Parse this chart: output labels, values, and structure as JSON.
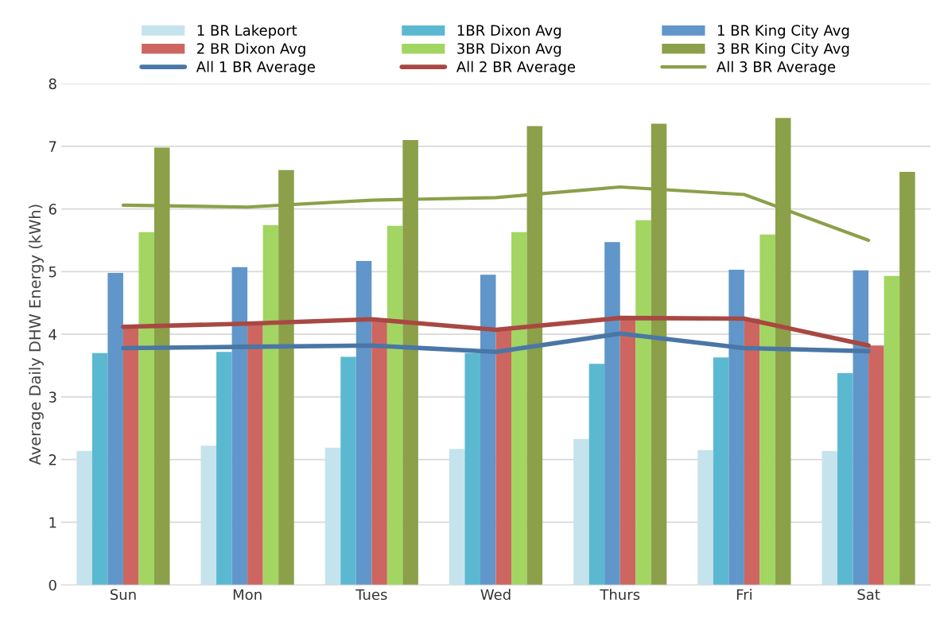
{
  "chart_data": {
    "type": "bar",
    "ylabel": "Average Daily DHW Energy (kWh)",
    "categories": [
      "Sun",
      "Mon",
      "Tues",
      "Wed",
      "Thurs",
      "Fri",
      "Sat"
    ],
    "ylim": [
      0,
      8
    ],
    "yticks": [
      0,
      1,
      2,
      3,
      4,
      5,
      6,
      7,
      8
    ],
    "grid": "y",
    "legend": "top",
    "series": [
      {
        "name": "1 BR Lakeport",
        "color": "#c5e3ec",
        "values": [
          2.14,
          2.22,
          2.19,
          2.17,
          2.33,
          2.15,
          2.14
        ]
      },
      {
        "name": "1BR Dixon Avg",
        "color": "#5bb8d1",
        "values": [
          3.7,
          3.72,
          3.64,
          3.7,
          3.53,
          3.63,
          3.38
        ]
      },
      {
        "name": "1 BR King City Avg",
        "color": "#6096c9",
        "values": [
          4.98,
          5.07,
          5.17,
          4.95,
          5.47,
          5.03,
          5.02
        ]
      },
      {
        "name": "2 BR Dixon Avg",
        "color": "#cd6660",
        "values": [
          4.12,
          4.17,
          4.24,
          4.07,
          4.26,
          4.25,
          3.82
        ]
      },
      {
        "name": "3BR Dixon Avg",
        "color": "#a2d562",
        "values": [
          5.63,
          5.74,
          5.73,
          5.63,
          5.82,
          5.59,
          4.93
        ]
      },
      {
        "name": "3 BR King City Avg",
        "color": "#8ba049",
        "values": [
          6.98,
          6.62,
          7.1,
          7.32,
          7.36,
          7.45,
          6.59
        ]
      },
      {
        "name": "All 1 BR Average",
        "type": "line",
        "color": "#4a76a6",
        "values": [
          3.78,
          3.8,
          3.82,
          3.72,
          4.01,
          3.78,
          3.73
        ]
      },
      {
        "name": "All 2 BR Average",
        "type": "line",
        "color": "#a84843",
        "values": [
          4.12,
          4.17,
          4.24,
          4.07,
          4.26,
          4.25,
          3.82
        ]
      },
      {
        "name": "All 3 BR Average",
        "type": "line",
        "color": "#8ba049",
        "values": [
          6.06,
          6.03,
          6.14,
          6.18,
          6.35,
          6.23,
          5.5
        ]
      }
    ]
  }
}
